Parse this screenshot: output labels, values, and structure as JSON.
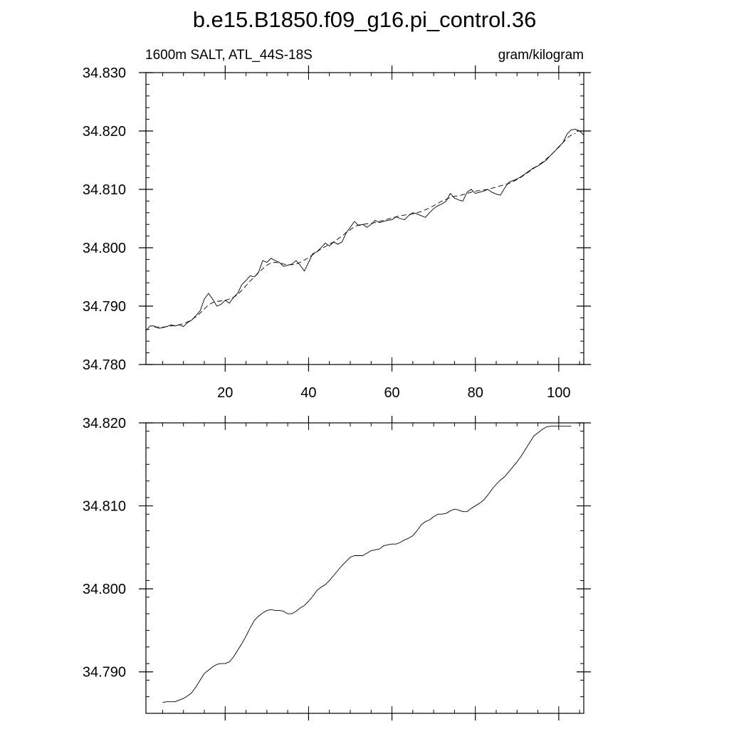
{
  "title": "b.e15.B1850.f09_g16.pi_control.36",
  "chart_data": [
    {
      "type": "line",
      "left_label": "1600m SALT, ATL_44S-18S",
      "right_label": "gram/kilogram",
      "xlim": [
        1,
        106
      ],
      "ylim": [
        34.78,
        34.83
      ],
      "x_ticks": [
        20,
        40,
        60,
        80,
        100
      ],
      "x_tick_labels": [
        "20",
        "40",
        "60",
        "80",
        "100"
      ],
      "y_ticks": [
        34.78,
        34.79,
        34.8,
        34.81,
        34.82,
        34.83
      ],
      "y_tick_labels": [
        "34.780",
        "34.790",
        "34.800",
        "34.810",
        "34.820",
        "34.830"
      ],
      "series": [
        {
          "style": "solid",
          "color": "#000000",
          "x": [
            1,
            2,
            3,
            4,
            5,
            6,
            7,
            8,
            9,
            10,
            11,
            12,
            13,
            14,
            15,
            16,
            17,
            18,
            19,
            20,
            21,
            22,
            23,
            24,
            25,
            26,
            27,
            28,
            29,
            30,
            31,
            32,
            33,
            34,
            35,
            36,
            37,
            38,
            39,
            40,
            41,
            42,
            43,
            44,
            45,
            46,
            47,
            48,
            49,
            50,
            51,
            52,
            53,
            54,
            55,
            56,
            57,
            58,
            59,
            60,
            61,
            62,
            63,
            64,
            65,
            66,
            67,
            68,
            69,
            70,
            71,
            72,
            73,
            74,
            75,
            76,
            77,
            78,
            79,
            80,
            81,
            82,
            83,
            84,
            85,
            86,
            87,
            88,
            89,
            90,
            91,
            92,
            93,
            94,
            95,
            96,
            97,
            98,
            99,
            100,
            101,
            102,
            103,
            104,
            105,
            106
          ],
          "values": [
            34.7858,
            34.7866,
            34.7866,
            34.7862,
            34.7863,
            34.7865,
            34.7868,
            34.7866,
            34.7868,
            34.7865,
            34.7872,
            34.7876,
            34.7884,
            34.7892,
            34.7912,
            34.7922,
            34.7912,
            34.79,
            34.7903,
            34.791,
            34.7905,
            34.7915,
            34.7922,
            34.7937,
            34.7944,
            34.7952,
            34.795,
            34.7958,
            34.7978,
            34.7975,
            34.7982,
            34.7978,
            34.7975,
            34.7968,
            34.797,
            34.7972,
            34.7978,
            34.797,
            34.796,
            34.7975,
            34.799,
            34.7993,
            34.8,
            34.8008,
            34.8003,
            34.801,
            34.8006,
            34.801,
            34.8025,
            34.8035,
            34.8045,
            34.8038,
            34.804,
            34.8035,
            34.804,
            34.8047,
            34.8043,
            34.8045,
            34.8047,
            34.8048,
            34.8053,
            34.805,
            34.8048,
            34.8055,
            34.806,
            34.8058,
            34.8055,
            34.8052,
            34.806,
            34.8067,
            34.8072,
            34.8075,
            34.808,
            34.8093,
            34.8085,
            34.8082,
            34.808,
            34.8095,
            34.81,
            34.8093,
            34.8095,
            34.8097,
            34.81,
            34.8095,
            34.8092,
            34.809,
            34.8102,
            34.8112,
            34.8115,
            34.8118,
            34.8122,
            34.8127,
            34.8132,
            34.8137,
            34.814,
            34.8145,
            34.815,
            34.8158,
            34.8165,
            34.8173,
            34.818,
            34.8195,
            34.8202,
            34.8203,
            34.82,
            34.8193
          ]
        },
        {
          "style": "dashed",
          "color": "#000000",
          "x": [
            3,
            4,
            5,
            6,
            7,
            8,
            9,
            10,
            11,
            12,
            13,
            14,
            15,
            16,
            17,
            18,
            19,
            20,
            21,
            22,
            23,
            24,
            25,
            26,
            27,
            28,
            29,
            30,
            31,
            32,
            33,
            34,
            35,
            36,
            37,
            38,
            39,
            40,
            41,
            42,
            43,
            44,
            45,
            46,
            47,
            48,
            49,
            50,
            51,
            52,
            53,
            54,
            55,
            56,
            57,
            58,
            59,
            60,
            61,
            62,
            63,
            64,
            65,
            66,
            67,
            68,
            69,
            70,
            71,
            72,
            73,
            74,
            75,
            76,
            77,
            78,
            79,
            80,
            81,
            82,
            83,
            84,
            85,
            86,
            87,
            88,
            89,
            90,
            91,
            92,
            93,
            94,
            95,
            96,
            97,
            98,
            99,
            100,
            101,
            102,
            103,
            104
          ],
          "values": [
            34.7864,
            34.7864,
            34.7864,
            34.7865,
            34.7866,
            34.7867,
            34.7868,
            34.787,
            34.7873,
            34.7877,
            34.7882,
            34.7888,
            34.7895,
            34.7902,
            34.7906,
            34.7908,
            34.7909,
            34.791,
            34.7912,
            34.7915,
            34.792,
            34.7927,
            34.7935,
            34.7943,
            34.795,
            34.7957,
            34.7964,
            34.797,
            34.7974,
            34.7975,
            34.7974,
            34.7972,
            34.7971,
            34.7971,
            34.7972,
            34.7975,
            34.7979,
            34.7983,
            34.7988,
            34.7993,
            34.7998,
            34.8002,
            34.8006,
            34.801,
            34.8015,
            34.802,
            34.8026,
            34.8031,
            34.8036,
            34.8039,
            34.804,
            34.8041,
            34.8042,
            34.8043,
            34.8045,
            34.8047,
            34.8049,
            34.8051,
            34.8053,
            34.8055,
            34.8056,
            34.8057,
            34.8058,
            34.806,
            34.8062,
            34.8065,
            34.8068,
            34.8072,
            34.8076,
            34.808,
            34.8083,
            34.8086,
            34.8088,
            34.8089,
            34.8091,
            34.8093,
            34.8095,
            34.8097,
            34.8098,
            34.8099,
            34.81,
            34.8102,
            34.8104,
            34.8106,
            34.8108,
            34.811,
            34.8113,
            34.8117,
            34.8121,
            34.8126,
            34.8131,
            34.8136,
            34.8141,
            34.8146,
            34.8152,
            34.8158,
            34.8165,
            34.8172,
            34.818,
            34.8188,
            34.8193,
            34.8196
          ]
        }
      ]
    },
    {
      "type": "line",
      "xlim": [
        1,
        106
      ],
      "ylim": [
        34.785,
        34.82
      ],
      "x_ticks": [
        20,
        40,
        60,
        80,
        100
      ],
      "x_tick_labels": [],
      "y_ticks": [
        34.79,
        34.8,
        34.81,
        34.82
      ],
      "y_tick_labels": [
        "34.790",
        "34.800",
        "34.810",
        "34.820"
      ],
      "series": [
        {
          "style": "solid",
          "color": "#000000",
          "x": [
            5,
            6,
            7,
            8,
            9,
            10,
            11,
            12,
            13,
            14,
            15,
            16,
            17,
            18,
            19,
            20,
            21,
            22,
            23,
            24,
            25,
            26,
            27,
            28,
            29,
            30,
            31,
            32,
            33,
            34,
            35,
            36,
            37,
            38,
            39,
            40,
            41,
            42,
            43,
            44,
            45,
            46,
            47,
            48,
            49,
            50,
            51,
            52,
            53,
            54,
            55,
            56,
            57,
            58,
            59,
            60,
            61,
            62,
            63,
            64,
            65,
            66,
            67,
            68,
            69,
            70,
            71,
            72,
            73,
            74,
            75,
            76,
            77,
            78,
            79,
            80,
            81,
            82,
            83,
            84,
            85,
            86,
            87,
            88,
            89,
            90,
            91,
            92,
            93,
            94,
            95,
            96,
            97,
            98,
            99,
            100,
            101,
            102,
            103
          ],
          "values": [
            34.7863,
            34.7864,
            34.7864,
            34.7864,
            34.7866,
            34.7868,
            34.7871,
            34.7875,
            34.7882,
            34.789,
            34.7898,
            34.7902,
            34.7906,
            34.7909,
            34.791,
            34.791,
            34.7912,
            34.7918,
            34.7926,
            34.7934,
            34.7943,
            34.7953,
            34.7962,
            34.7967,
            34.7971,
            34.7974,
            34.7975,
            34.7974,
            34.7974,
            34.7973,
            34.797,
            34.797,
            34.7973,
            34.7977,
            34.798,
            34.7985,
            34.7991,
            34.7998,
            34.8002,
            34.8005,
            34.801,
            34.8016,
            34.8022,
            34.8028,
            34.8033,
            34.8038,
            34.804,
            34.804,
            34.804,
            34.8043,
            34.8046,
            34.8047,
            34.8048,
            34.8052,
            34.8053,
            34.8054,
            34.8054,
            34.8056,
            34.8059,
            34.8061,
            34.8064,
            34.807,
            34.8077,
            34.8081,
            34.8083,
            34.8087,
            34.809,
            34.809,
            34.8091,
            34.8094,
            34.8096,
            34.8095,
            34.8093,
            34.8093,
            34.8097,
            34.81,
            34.8103,
            34.8107,
            34.8113,
            34.812,
            34.8126,
            34.8131,
            34.8135,
            34.8141,
            34.8147,
            34.8153,
            34.816,
            34.8168,
            34.8176,
            34.8184,
            34.8188,
            34.8192,
            34.8195,
            34.8196,
            34.8196,
            34.8196,
            34.8196,
            34.8196,
            34.8196
          ]
        }
      ]
    }
  ]
}
